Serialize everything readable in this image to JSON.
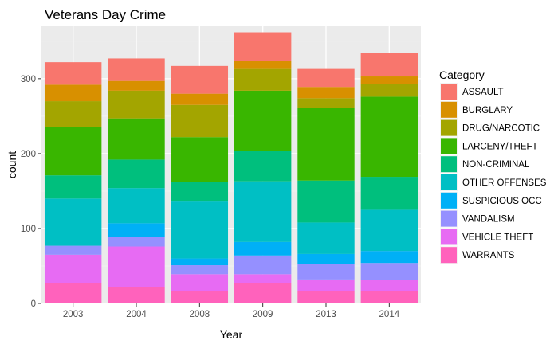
{
  "chart_data": {
    "type": "bar",
    "stacked": true,
    "title": "Veterans Day Crime",
    "xlabel": "Year",
    "ylabel": "count",
    "ylim": [
      0,
      370
    ],
    "yticks": [
      0,
      100,
      200,
      300
    ],
    "grid": true,
    "legend": {
      "title": "Category",
      "position": "right"
    },
    "categories": [
      "2003",
      "2004",
      "2008",
      "2009",
      "2013",
      "2014"
    ],
    "series": [
      {
        "name": "ASSAULT",
        "color": "#F8766D",
        "values": [
          30,
          30,
          37,
          38,
          24,
          31
        ]
      },
      {
        "name": "BURGLARY",
        "color": "#D89000",
        "values": [
          22,
          13,
          15,
          11,
          15,
          10
        ]
      },
      {
        "name": "DRUG/NARCOTIC",
        "color": "#A3A500",
        "values": [
          35,
          37,
          43,
          29,
          13,
          17
        ]
      },
      {
        "name": "LARCENY/THEFT",
        "color": "#39B600",
        "values": [
          64,
          55,
          60,
          80,
          97,
          107
        ]
      },
      {
        "name": "NON-CRIMINAL",
        "color": "#00BF7D",
        "values": [
          31,
          38,
          26,
          41,
          56,
          44
        ]
      },
      {
        "name": "OTHER OFFENSES",
        "color": "#00BFC4",
        "values": [
          63,
          47,
          76,
          81,
          42,
          55
        ]
      },
      {
        "name": "SUSPICIOUS OCC",
        "color": "#00B0F6",
        "values": [
          0,
          18,
          9,
          18,
          13,
          16
        ]
      },
      {
        "name": "VANDALISM",
        "color": "#9590FF",
        "values": [
          12,
          13,
          12,
          25,
          21,
          23
        ]
      },
      {
        "name": "VEHICLE THEFT",
        "color": "#E76BF3",
        "values": [
          38,
          54,
          23,
          12,
          16,
          15
        ]
      },
      {
        "name": "WARRANTS",
        "color": "#FF62BC",
        "values": [
          27,
          22,
          16,
          27,
          16,
          16
        ]
      }
    ]
  }
}
